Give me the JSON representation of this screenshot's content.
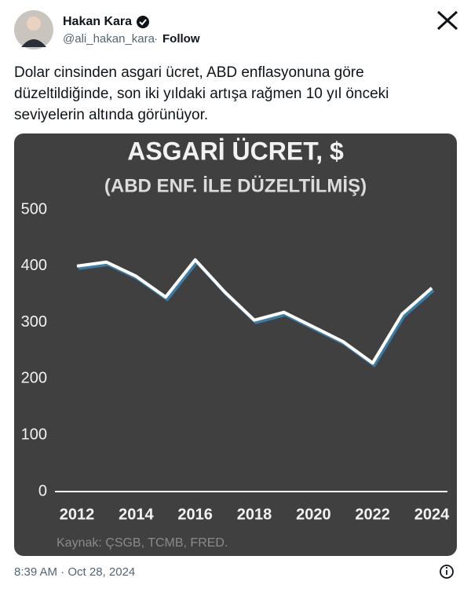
{
  "tweet": {
    "name": "Hakan Kara",
    "handle": "@ali_hakan_kara",
    "separator": "·",
    "follow": "Follow",
    "text_lines": [
      "Dolar cinsinden asgari ücret, ABD enflasyonuna göre",
      "düzeltildiğinde, son iki yıldaki artışa rağmen 10 yıl önceki",
      "seviyelerin altında görünüyor."
    ],
    "timestamp": "8:39 AM · Oct 28, 2024"
  },
  "chart_data": {
    "type": "line",
    "title": "ASGARİ ÜCRET, $",
    "subtitle": "(ABD ENF. İLE DÜZELTİLMİŞ)",
    "x": [
      2012,
      2013,
      2014,
      2015,
      2016,
      2017,
      2018,
      2019,
      2020,
      2021,
      2022,
      2023,
      2024
    ],
    "series": [
      {
        "color": "#ffffff",
        "values": [
          400,
          407,
          382,
          345,
          411,
          354,
          304,
          318,
          292,
          266,
          228,
          315,
          361
        ]
      }
    ],
    "xlim": [
      2012,
      2024
    ],
    "xticks": [
      2012,
      2014,
      2016,
      2018,
      2020,
      2022,
      2024
    ],
    "ylim": [
      0,
      500
    ],
    "yticks": [
      0,
      100,
      200,
      300,
      400,
      500
    ],
    "source": "Kaynak: ÇSGB, TCMB, FRED."
  }
}
